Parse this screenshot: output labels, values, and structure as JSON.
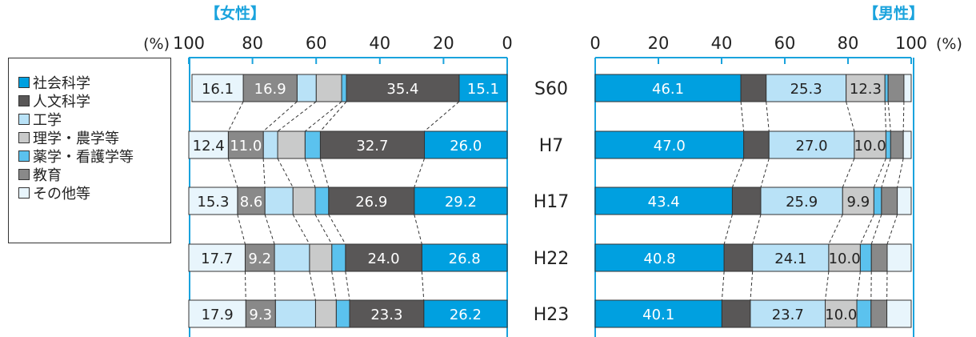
{
  "chart_data": [
    {
      "type": "bar",
      "title": "【女性】",
      "orientation": "horizontal",
      "stacked": true,
      "axis_direction": "reversed",
      "unit_label": "(%)",
      "xlim": [
        0,
        100
      ],
      "ticks": [
        100,
        80,
        60,
        40,
        20,
        0
      ],
      "categories": [
        "S60",
        "H7",
        "H17",
        "H22",
        "H23"
      ],
      "series": [
        {
          "name": "社会科学",
          "values": [
            15.1,
            26.0,
            29.2,
            26.8,
            26.2
          ],
          "labels": [
            "15.1",
            "26.0",
            "29.2",
            "26.8",
            "26.2"
          ]
        },
        {
          "name": "人文科学",
          "values": [
            35.4,
            32.7,
            26.9,
            24.0,
            23.3
          ],
          "labels": [
            "35.4",
            "32.7",
            "26.9",
            "24.0",
            "23.3"
          ]
        },
        {
          "name": "薬学・看護学等",
          "values": [
            1.5,
            4.8,
            4.2,
            4.3,
            4.2
          ],
          "labels": [
            "",
            "",
            "",
            "",
            ""
          ]
        },
        {
          "name": "理学・農学等",
          "values": [
            8.0,
            8.6,
            7.0,
            7.0,
            6.5
          ],
          "labels": [
            "",
            "",
            "",
            "",
            ""
          ]
        },
        {
          "name": "工学",
          "values": [
            6.0,
            4.5,
            8.8,
            11.0,
            12.6
          ],
          "labels": [
            "",
            "",
            "",
            "",
            ""
          ]
        },
        {
          "name": "教育",
          "values": [
            16.9,
            11.0,
            8.6,
            9.2,
            9.3
          ],
          "labels": [
            "16.9",
            "11.0",
            "8.6",
            "9.2",
            "9.3"
          ]
        },
        {
          "name": "その他等",
          "values": [
            16.1,
            12.4,
            15.3,
            17.7,
            17.9
          ],
          "labels": [
            "16.1",
            "12.4",
            "15.3",
            "17.7",
            "17.9"
          ]
        }
      ]
    },
    {
      "type": "bar",
      "title": "【男性】",
      "orientation": "horizontal",
      "stacked": true,
      "axis_direction": "normal",
      "unit_label": "(%)",
      "xlim": [
        0,
        100
      ],
      "ticks": [
        0,
        20,
        40,
        60,
        80,
        100
      ],
      "categories": [
        "S60",
        "H7",
        "H17",
        "H22",
        "H23"
      ],
      "series": [
        {
          "name": "社会科学",
          "values": [
            46.1,
            47.0,
            43.4,
            40.8,
            40.1
          ],
          "labels": [
            "46.1",
            "47.0",
            "43.4",
            "40.8",
            "40.1"
          ]
        },
        {
          "name": "人文科学",
          "values": [
            8.0,
            8.0,
            9.0,
            9.0,
            9.0
          ],
          "labels": [
            "",
            "",
            "",
            "",
            ""
          ]
        },
        {
          "name": "工学",
          "values": [
            25.3,
            27.0,
            25.9,
            24.1,
            23.7
          ],
          "labels": [
            "25.3",
            "27.0",
            "25.9",
            "24.1",
            "23.7"
          ]
        },
        {
          "name": "理学・農学等",
          "values": [
            12.3,
            10.0,
            9.9,
            10.0,
            10.0
          ],
          "labels": [
            "12.3",
            "10.0",
            "9.9",
            "10.0",
            "10.0"
          ]
        },
        {
          "name": "薬学・看護学等",
          "values": [
            1.0,
            1.5,
            2.4,
            3.5,
            4.5
          ],
          "labels": [
            "",
            "",
            "",
            "",
            ""
          ]
        },
        {
          "name": "教育",
          "values": [
            5.0,
            4.0,
            5.0,
            5.0,
            5.0
          ],
          "labels": [
            "",
            "",
            "",
            "",
            ""
          ]
        },
        {
          "name": "その他等",
          "values": [
            2.3,
            2.5,
            4.4,
            7.6,
            7.7
          ],
          "labels": [
            "",
            "",
            "",
            "",
            ""
          ]
        }
      ]
    }
  ],
  "legend": {
    "items": [
      {
        "label": "社会科学",
        "color": "#00a0e0"
      },
      {
        "label": "人文科学",
        "color": "#595757"
      },
      {
        "label": "工学",
        "color": "#b9e2f7"
      },
      {
        "label": "理学・農学等",
        "color": "#c9caca"
      },
      {
        "label": "薬学・看護学等",
        "color": "#5bc2ee"
      },
      {
        "label": "教育",
        "color": "#898989"
      },
      {
        "label": "その他等",
        "color": "#e8f5fc"
      }
    ]
  },
  "colors": {
    "社会科学": "#00a0e0",
    "人文科学": "#595757",
    "工学": "#b9e2f7",
    "理学・農学等": "#c9caca",
    "薬学・看護学等": "#5bc2ee",
    "教育": "#898989",
    "その他等": "#e8f5fc",
    "axis": "#1aa3dd",
    "title": "#1aa3dd"
  }
}
